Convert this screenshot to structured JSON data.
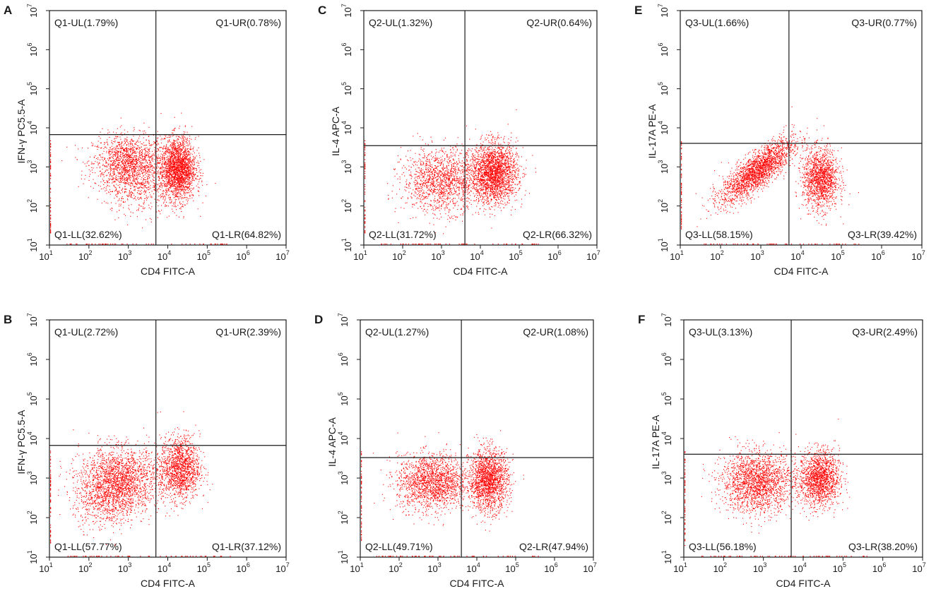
{
  "figure": {
    "colors": {
      "dots": "#ff0000",
      "axes": "#1a1a1a",
      "background": "#ffffff"
    },
    "tick_base": "10",
    "tick_exponents": [
      1,
      2,
      3,
      4,
      5,
      6,
      7
    ]
  },
  "chart_data": [
    {
      "panel": "A",
      "type": "scatter",
      "xlabel": "CD4 FITC-A",
      "ylabel": "IFN-γ PC5.5-A",
      "xscale": "log",
      "yscale": "log",
      "xlim": [
        10,
        10000000
      ],
      "ylim": [
        10,
        10000000
      ],
      "gate": {
        "x": 5000,
        "y": 6700
      },
      "quadrants": {
        "UL": "Q1-UL(1.79%)",
        "UR": "Q1-UR(0.78%)",
        "LL": "Q1-LL(32.62%)",
        "LR": "Q1-LR(64.82%)"
      },
      "clusters": [
        {
          "x": 1000,
          "y": 1300,
          "sx": 0.45,
          "sy": 0.35,
          "n": 1500
        },
        {
          "x": 18000,
          "y": 900,
          "sx": 0.22,
          "sy": 0.4,
          "n": 2200
        },
        {
          "x": 1800,
          "y": 300,
          "sx": 0.45,
          "sy": 0.35,
          "n": 400
        }
      ]
    },
    {
      "panel": "B",
      "type": "scatter",
      "xlabel": "CD4 FITC-A",
      "ylabel": "IFN-γ PC5.5-A",
      "xscale": "log",
      "yscale": "log",
      "xlim": [
        10,
        10000000
      ],
      "ylim": [
        10,
        10000000
      ],
      "gate": {
        "x": 5000,
        "y": 6700
      },
      "quadrants": {
        "UL": "Q1-UL(2.72%)",
        "UR": "Q1-UR(2.39%)",
        "LL": "Q1-LL(57.77%)",
        "LR": "Q1-LR(37.12%)"
      },
      "clusters": [
        {
          "x": 600,
          "y": 900,
          "sx": 0.5,
          "sy": 0.4,
          "n": 2000
        },
        {
          "x": 20000,
          "y": 1800,
          "sx": 0.25,
          "sy": 0.4,
          "n": 1500
        },
        {
          "x": 250,
          "y": 250,
          "sx": 0.4,
          "sy": 0.35,
          "n": 500
        }
      ]
    },
    {
      "panel": "C",
      "type": "scatter",
      "xlabel": "CD4 FITC-A",
      "ylabel": "IL-4 APC-A",
      "xscale": "log",
      "yscale": "log",
      "xlim": [
        10,
        10000000
      ],
      "ylim": [
        10,
        10000000
      ],
      "gate": {
        "x": 4000,
        "y": 3500
      },
      "quadrants": {
        "UL": "Q2-UL(1.32%)",
        "UR": "Q2-UR(0.64%)",
        "LL": "Q2-LL(31.72%)",
        "LR": "Q2-LR(66.32%)"
      },
      "clusters": [
        {
          "x": 1000,
          "y": 450,
          "sx": 0.5,
          "sy": 0.4,
          "n": 1500
        },
        {
          "x": 22000,
          "y": 700,
          "sx": 0.3,
          "sy": 0.38,
          "n": 2300
        }
      ]
    },
    {
      "panel": "D",
      "type": "scatter",
      "xlabel": "CD4 FITC-A",
      "ylabel": "IL-4 APC-A",
      "xscale": "log",
      "yscale": "log",
      "xlim": [
        10,
        10000000
      ],
      "ylim": [
        10,
        10000000
      ],
      "gate": {
        "x": 4000,
        "y": 3300
      },
      "quadrants": {
        "UL": "Q2-UL(1.27%)",
        "UR": "Q2-UR(1.08%)",
        "LL": "Q2-LL(49.71%)",
        "LR": "Q2-LR(47.94%)"
      },
      "clusters": [
        {
          "x": 700,
          "y": 800,
          "sx": 0.45,
          "sy": 0.35,
          "n": 1800
        },
        {
          "x": 20000,
          "y": 900,
          "sx": 0.25,
          "sy": 0.38,
          "n": 1800
        }
      ]
    },
    {
      "panel": "E",
      "type": "scatter",
      "xlabel": "CD4 FITC-A",
      "ylabel": "IL-17A PE-A",
      "xscale": "log",
      "yscale": "log",
      "xlim": [
        10,
        10000000
      ],
      "ylim": [
        10,
        10000000
      ],
      "gate": {
        "x": 5000,
        "y": 4000
      },
      "quadrants": {
        "UL": "Q3-UL(1.66%)",
        "UR": "Q3-UR(0.77%)",
        "LL": "Q3-LL(58.15%)",
        "LR": "Q3-LR(39.42%)"
      },
      "clusters": [
        {
          "x": 800,
          "y": 800,
          "sx": 0.45,
          "sy": 0.4,
          "rho": 0.8,
          "n": 2200
        },
        {
          "x": 30000,
          "y": 500,
          "sx": 0.22,
          "sy": 0.38,
          "n": 1500
        }
      ]
    },
    {
      "panel": "F",
      "type": "scatter",
      "xlabel": "CD4 FITC-A",
      "ylabel": "IL-17A PE-A",
      "xscale": "log",
      "yscale": "log",
      "xlim": [
        10,
        10000000
      ],
      "ylim": [
        10,
        10000000
      ],
      "gate": {
        "x": 5000,
        "y": 4000
      },
      "quadrants": {
        "UL": "Q3-UL(3.13%)",
        "UR": "Q3-UR(2.49%)",
        "LL": "Q3-LL(56.18%)",
        "LR": "Q3-LR(38.20%)"
      },
      "clusters": [
        {
          "x": 700,
          "y": 800,
          "sx": 0.45,
          "sy": 0.38,
          "n": 2000
        },
        {
          "x": 25000,
          "y": 1000,
          "sx": 0.25,
          "sy": 0.35,
          "n": 1600
        }
      ]
    }
  ]
}
